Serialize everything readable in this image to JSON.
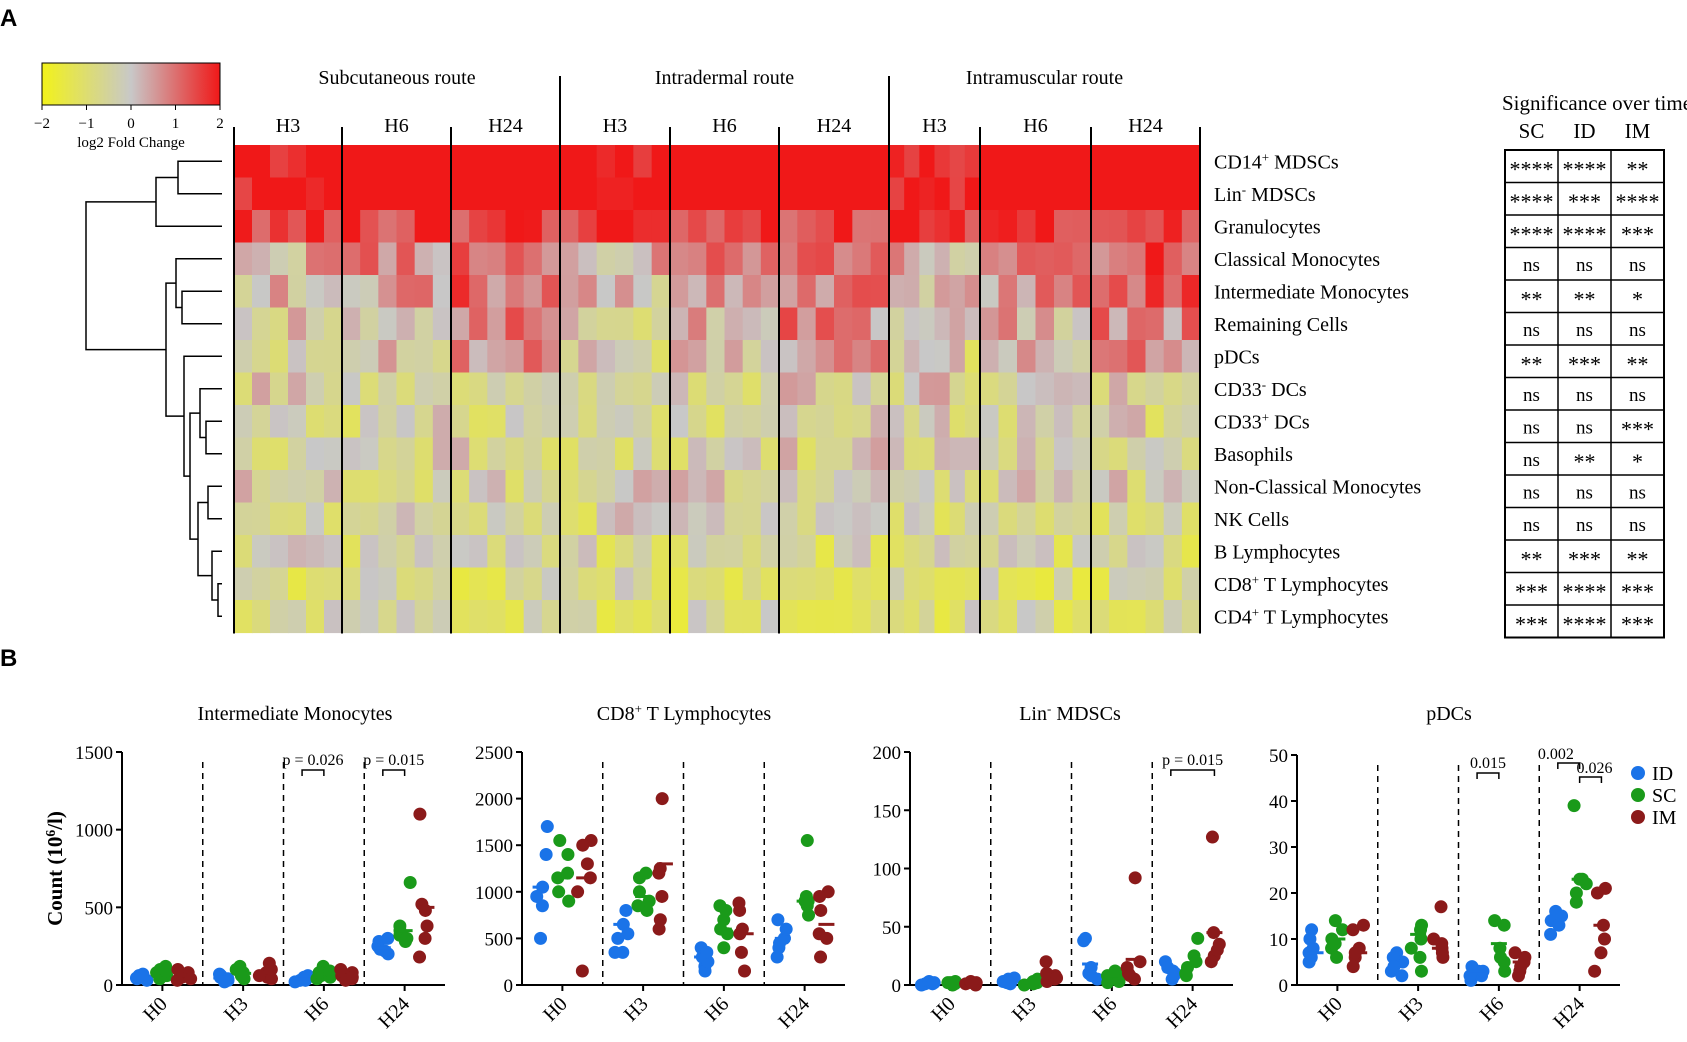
{
  "panels": {
    "a": "A",
    "b": "B"
  },
  "colorbar": {
    "label": "log2 Fold Change",
    "ticks": [
      "−2",
      "−1",
      "0",
      "1",
      "2"
    ],
    "tick_values": [
      -2,
      -1,
      0,
      1,
      2
    ],
    "low_color": "#f2f21a",
    "mid_color": "#c8c8c8",
    "high_color": "#f01818"
  },
  "heatmap": {
    "routes": [
      "Subcutaneous route",
      "Intradermal route",
      "Intramuscular route"
    ],
    "timepoints": [
      [
        "H3",
        "H6",
        "H24"
      ],
      [
        "H3",
        "H6",
        "H24"
      ],
      [
        "H3",
        "H6",
        "H24"
      ]
    ],
    "row_labels": [
      {
        "main": "CD14",
        "sup": "+",
        "rest": " MDSCs"
      },
      {
        "main": "Lin",
        "sup": "-",
        "rest": " MDSCs"
      },
      {
        "main": "Granulocytes",
        "sup": "",
        "rest": ""
      },
      {
        "main": "Classical Monocytes",
        "sup": "",
        "rest": ""
      },
      {
        "main": "Intermediate Monocytes",
        "sup": "",
        "rest": ""
      },
      {
        "main": "Remaining Cells",
        "sup": "",
        "rest": ""
      },
      {
        "main": "pDCs",
        "sup": "",
        "rest": ""
      },
      {
        "main": "CD33",
        "sup": "-",
        "rest": " DCs"
      },
      {
        "main": "CD33",
        "sup": "+",
        "rest": " DCs"
      },
      {
        "main": "Basophils",
        "sup": "",
        "rest": ""
      },
      {
        "main": "Non-Classical Monocytes",
        "sup": "",
        "rest": ""
      },
      {
        "main": "NK Cells",
        "sup": "",
        "rest": ""
      },
      {
        "main": "B Lymphocytes",
        "sup": "",
        "rest": ""
      },
      {
        "main": "CD8",
        "sup": "+",
        "rest": " T Lymphocytes"
      },
      {
        "main": "CD4",
        "sup": "+",
        "rest": " T Lymphocytes"
      }
    ],
    "row_means": [
      1.5,
      1.5,
      1.2,
      0.5,
      0.35,
      0.15,
      0.05,
      -0.15,
      -0.25,
      -0.2,
      -0.2,
      -0.3,
      -0.35,
      -0.45,
      -0.45
    ]
  },
  "significance": {
    "title": "Significance over time",
    "columns": [
      "SC",
      "ID",
      "IM"
    ],
    "rows": [
      [
        "****",
        "****",
        "**"
      ],
      [
        "****",
        "***",
        "****"
      ],
      [
        "****",
        "****",
        "***"
      ],
      [
        "ns",
        "ns",
        "ns"
      ],
      [
        "**",
        "**",
        "*"
      ],
      [
        "ns",
        "ns",
        "ns"
      ],
      [
        "**",
        "***",
        "**"
      ],
      [
        "ns",
        "ns",
        "ns"
      ],
      [
        "ns",
        "ns",
        "***"
      ],
      [
        "ns",
        "**",
        "*"
      ],
      [
        "ns",
        "ns",
        "ns"
      ],
      [
        "ns",
        "ns",
        "ns"
      ],
      [
        "**",
        "***",
        "**"
      ],
      [
        "***",
        "****",
        "***"
      ],
      [
        "***",
        "****",
        "***"
      ]
    ]
  },
  "legend": [
    {
      "label": "ID",
      "color": "#1a73e8"
    },
    {
      "label": "SC",
      "color": "#1a9a1a"
    },
    {
      "label": "IM",
      "color": "#8b1a1a"
    }
  ],
  "chart_data": [
    {
      "type": "scatter",
      "title": "Intermediate Monocytes",
      "ylabel": "Count (10⁶/l)",
      "ylabel_parts": {
        "main": "Count (10",
        "sup": "6",
        "rest": "/l)"
      },
      "ylim": [
        0,
        1500
      ],
      "yticks": [
        0,
        500,
        1000,
        1500
      ],
      "categories": [
        "H0",
        "H3",
        "H6",
        "H24"
      ],
      "series": [
        {
          "name": "ID",
          "points": [
            [
              50,
              45,
              30,
              60,
              70,
              40
            ],
            [
              30,
              50,
              70,
              60,
              40,
              20
            ],
            [
              30,
              50,
              40,
              20,
              60,
              30
            ],
            [
              200,
              250,
              280,
              230,
              300,
              220
            ]
          ],
          "means": [
            45,
            45,
            40,
            240
          ]
        },
        {
          "name": "SC",
          "points": [
            [
              60,
              100,
              40,
              120,
              80,
              90
            ],
            [
              80,
              50,
              120,
              40,
              100,
              60
            ],
            [
              60,
              40,
              120,
              80,
              50,
              90
            ],
            [
              280,
              350,
              320,
              660,
              380,
              300
            ]
          ],
          "means": [
            80,
            75,
            70,
            350
          ]
        },
        {
          "name": "IM",
          "points": [
            [
              60,
              50,
              80,
              30,
              100,
              40
            ],
            [
              50,
              140,
              80,
              100,
              40,
              60
            ],
            [
              60,
              40,
              80,
              50,
              100,
              30
            ],
            [
              380,
              1100,
              520,
              300,
              180,
              480
            ]
          ],
          "means": [
            60,
            80,
            60,
            500
          ]
        }
      ],
      "annotations": [
        {
          "text": "p = 0.026",
          "group": 2
        },
        {
          "text": "p = 0.015",
          "group": 3
        }
      ]
    },
    {
      "type": "scatter",
      "title": "CD8⁺ T Lymphocytes",
      "title_parts": {
        "main": "CD8",
        "sup": "+",
        "rest": " T Lymphocytes"
      },
      "ylim": [
        0,
        2500
      ],
      "yticks": [
        0,
        500,
        1000,
        1500,
        2000,
        2500
      ],
      "categories": [
        "H0",
        "H3",
        "H6",
        "H24"
      ],
      "series": [
        {
          "name": "ID",
          "points": [
            [
              1700,
              500,
              1050,
              850,
              1400,
              950
            ],
            [
              800,
              350,
              650,
              550,
              350,
              500
            ],
            [
              400,
              200,
              300,
              150,
              250,
              350
            ],
            [
              700,
              300,
              500,
              400,
              600,
              450
            ]
          ],
          "means": [
            1050,
            650,
            300,
            500
          ]
        },
        {
          "name": "SC",
          "points": [
            [
              1550,
              1150,
              1000,
              1200,
              1400,
              900
            ],
            [
              1150,
              1000,
              800,
              900,
              1200,
              850
            ],
            [
              600,
              800,
              700,
              550,
              400,
              850
            ],
            [
              900,
              1550,
              750,
              850,
              950,
              900
            ]
          ],
          "means": [
            1150,
            950,
            600,
            900
          ]
        },
        {
          "name": "IM",
          "points": [
            [
              1550,
              1300,
              1150,
              1000,
              1500,
              150
            ],
            [
              2000,
              1200,
              950,
              700,
              1250,
              600
            ],
            [
              800,
              550,
              350,
              150,
              600,
              880
            ],
            [
              1000,
              800,
              550,
              300,
              950,
              500
            ]
          ],
          "means": [
            1150,
            1300,
            550,
            650
          ]
        }
      ],
      "annotations": []
    },
    {
      "type": "scatter",
      "title": "Lin⁻ MDSCs",
      "title_parts": {
        "main": "Lin",
        "sup": "-",
        "rest": " MDSCs"
      },
      "ylim": [
        0,
        200
      ],
      "yticks": [
        0,
        50,
        100,
        150,
        200
      ],
      "categories": [
        "H0",
        "H3",
        "H6",
        "H24"
      ],
      "series": [
        {
          "name": "ID",
          "points": [
            [
              1,
              2,
              0,
              3,
              1,
              2
            ],
            [
              2,
              5,
              1,
              3,
              6,
              2
            ],
            [
              40,
              10,
              5,
              38,
              15,
              8
            ],
            [
              20,
              8,
              12,
              10,
              15,
              5
            ]
          ],
          "means": [
            1,
            3,
            18,
            12
          ]
        },
        {
          "name": "SC",
          "points": [
            [
              2,
              1,
              3,
              0,
              2,
              1
            ],
            [
              1,
              3,
              2,
              5,
              0,
              2
            ],
            [
              5,
              10,
              8,
              3,
              12,
              2
            ],
            [
              25,
              40,
              10,
              15,
              20,
              8
            ]
          ],
          "means": [
            2,
            2,
            8,
            18
          ]
        },
        {
          "name": "IM",
          "points": [
            [
              1,
              2,
              0,
              1,
              3,
              2
            ],
            [
              5,
              20,
              8,
              3,
              10,
              6
            ],
            [
              92,
              20,
              10,
              5,
              15,
              8
            ],
            [
              127,
              35,
              25,
              45,
              30,
              20
            ]
          ],
          "means": [
            2,
            8,
            22,
            45
          ]
        }
      ],
      "annotations": [
        {
          "text": "p = 0.015",
          "group": 3
        }
      ]
    },
    {
      "type": "scatter",
      "title": "pDCs",
      "ylim": [
        0,
        50
      ],
      "yticks": [
        0,
        10,
        20,
        30,
        40,
        50
      ],
      "categories": [
        "H0",
        "H3",
        "H6",
        "H24"
      ],
      "series": [
        {
          "name": "ID",
          "points": [
            [
              12,
              5,
              7,
              10,
              8,
              6
            ],
            [
              7,
              5,
              3,
              2,
              6,
              4
            ],
            [
              3,
              2,
              4,
              1,
              3,
              2
            ],
            [
              15,
              11,
              16,
              14,
              15,
              13
            ]
          ],
          "means": [
            7,
            6,
            3,
            15
          ]
        },
        {
          "name": "SC",
          "points": [
            [
              14,
              12,
              8,
              10,
              6,
              9
            ],
            [
              13,
              10,
              3,
              6,
              8,
              12
            ],
            [
              14,
              13,
              8,
              3,
              6,
              5
            ],
            [
              39,
              23,
              22,
              20,
              23,
              18
            ]
          ],
          "means": [
            10,
            11,
            9,
            23
          ]
        },
        {
          "name": "IM",
          "points": [
            [
              13,
              8,
              6,
              4,
              12,
              7
            ],
            [
              17,
              8,
              6,
              7,
              9,
              10
            ],
            [
              6,
              3,
              5,
              2,
              4,
              7
            ],
            [
              21,
              20,
              13,
              7,
              3,
              10
            ]
          ],
          "means": [
            7,
            8,
            5,
            13
          ]
        }
      ],
      "annotations": [
        {
          "text": "0.015",
          "group": 2
        },
        {
          "text": "0.002",
          "group": 3
        },
        {
          "text": "0.026",
          "group": 3
        }
      ]
    }
  ]
}
